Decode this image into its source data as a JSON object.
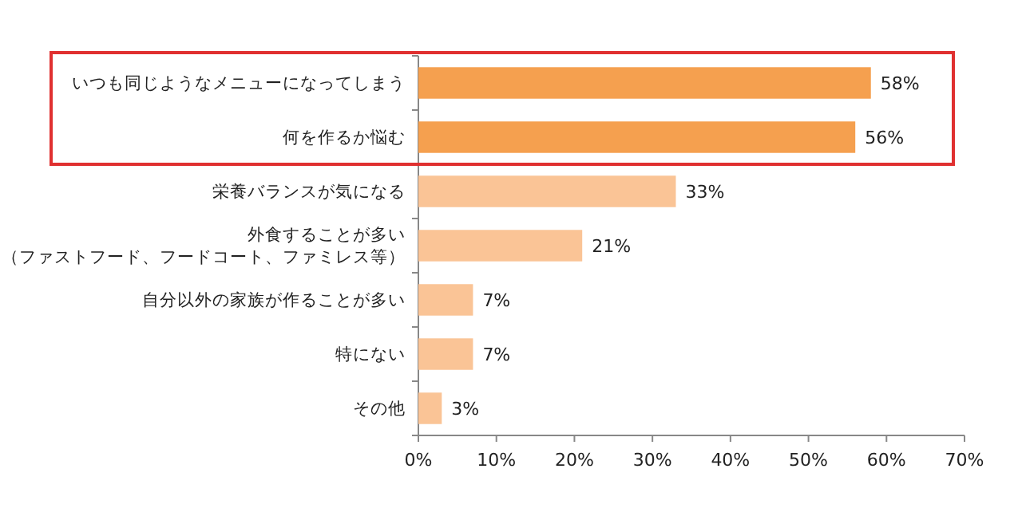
{
  "chart_data": {
    "type": "bar",
    "orientation": "horizontal",
    "categories": [
      "いつも同じようなメニューになってしまう",
      "何を作るか悩む",
      "栄養バランスが気になる",
      "外食することが多い（ファストフード、フードコート、ファミレス等）",
      "自分以外の家族が作ることが多い",
      "特にない",
      "その他"
    ],
    "values": [
      58,
      56,
      33,
      21,
      7,
      7,
      3
    ],
    "colors": [
      "#f5a04f",
      "#f5a04f",
      "#fac496",
      "#fac496",
      "#fac496",
      "#fac496",
      "#fac496"
    ],
    "value_labels": [
      "58%",
      "56%",
      "33%",
      "21%",
      "7%",
      "7%",
      "3%"
    ],
    "xlim": [
      0,
      70
    ],
    "xticks": [
      {
        "value": 0,
        "label": "0%"
      },
      {
        "value": 10,
        "label": "10%"
      },
      {
        "value": 20,
        "label": "20%"
      },
      {
        "value": 30,
        "label": "30%"
      },
      {
        "value": 40,
        "label": "40%"
      },
      {
        "value": 50,
        "label": "50%"
      },
      {
        "value": 60,
        "label": "60%"
      },
      {
        "value": 70,
        "label": "70%"
      }
    ],
    "grid": false
  }
}
